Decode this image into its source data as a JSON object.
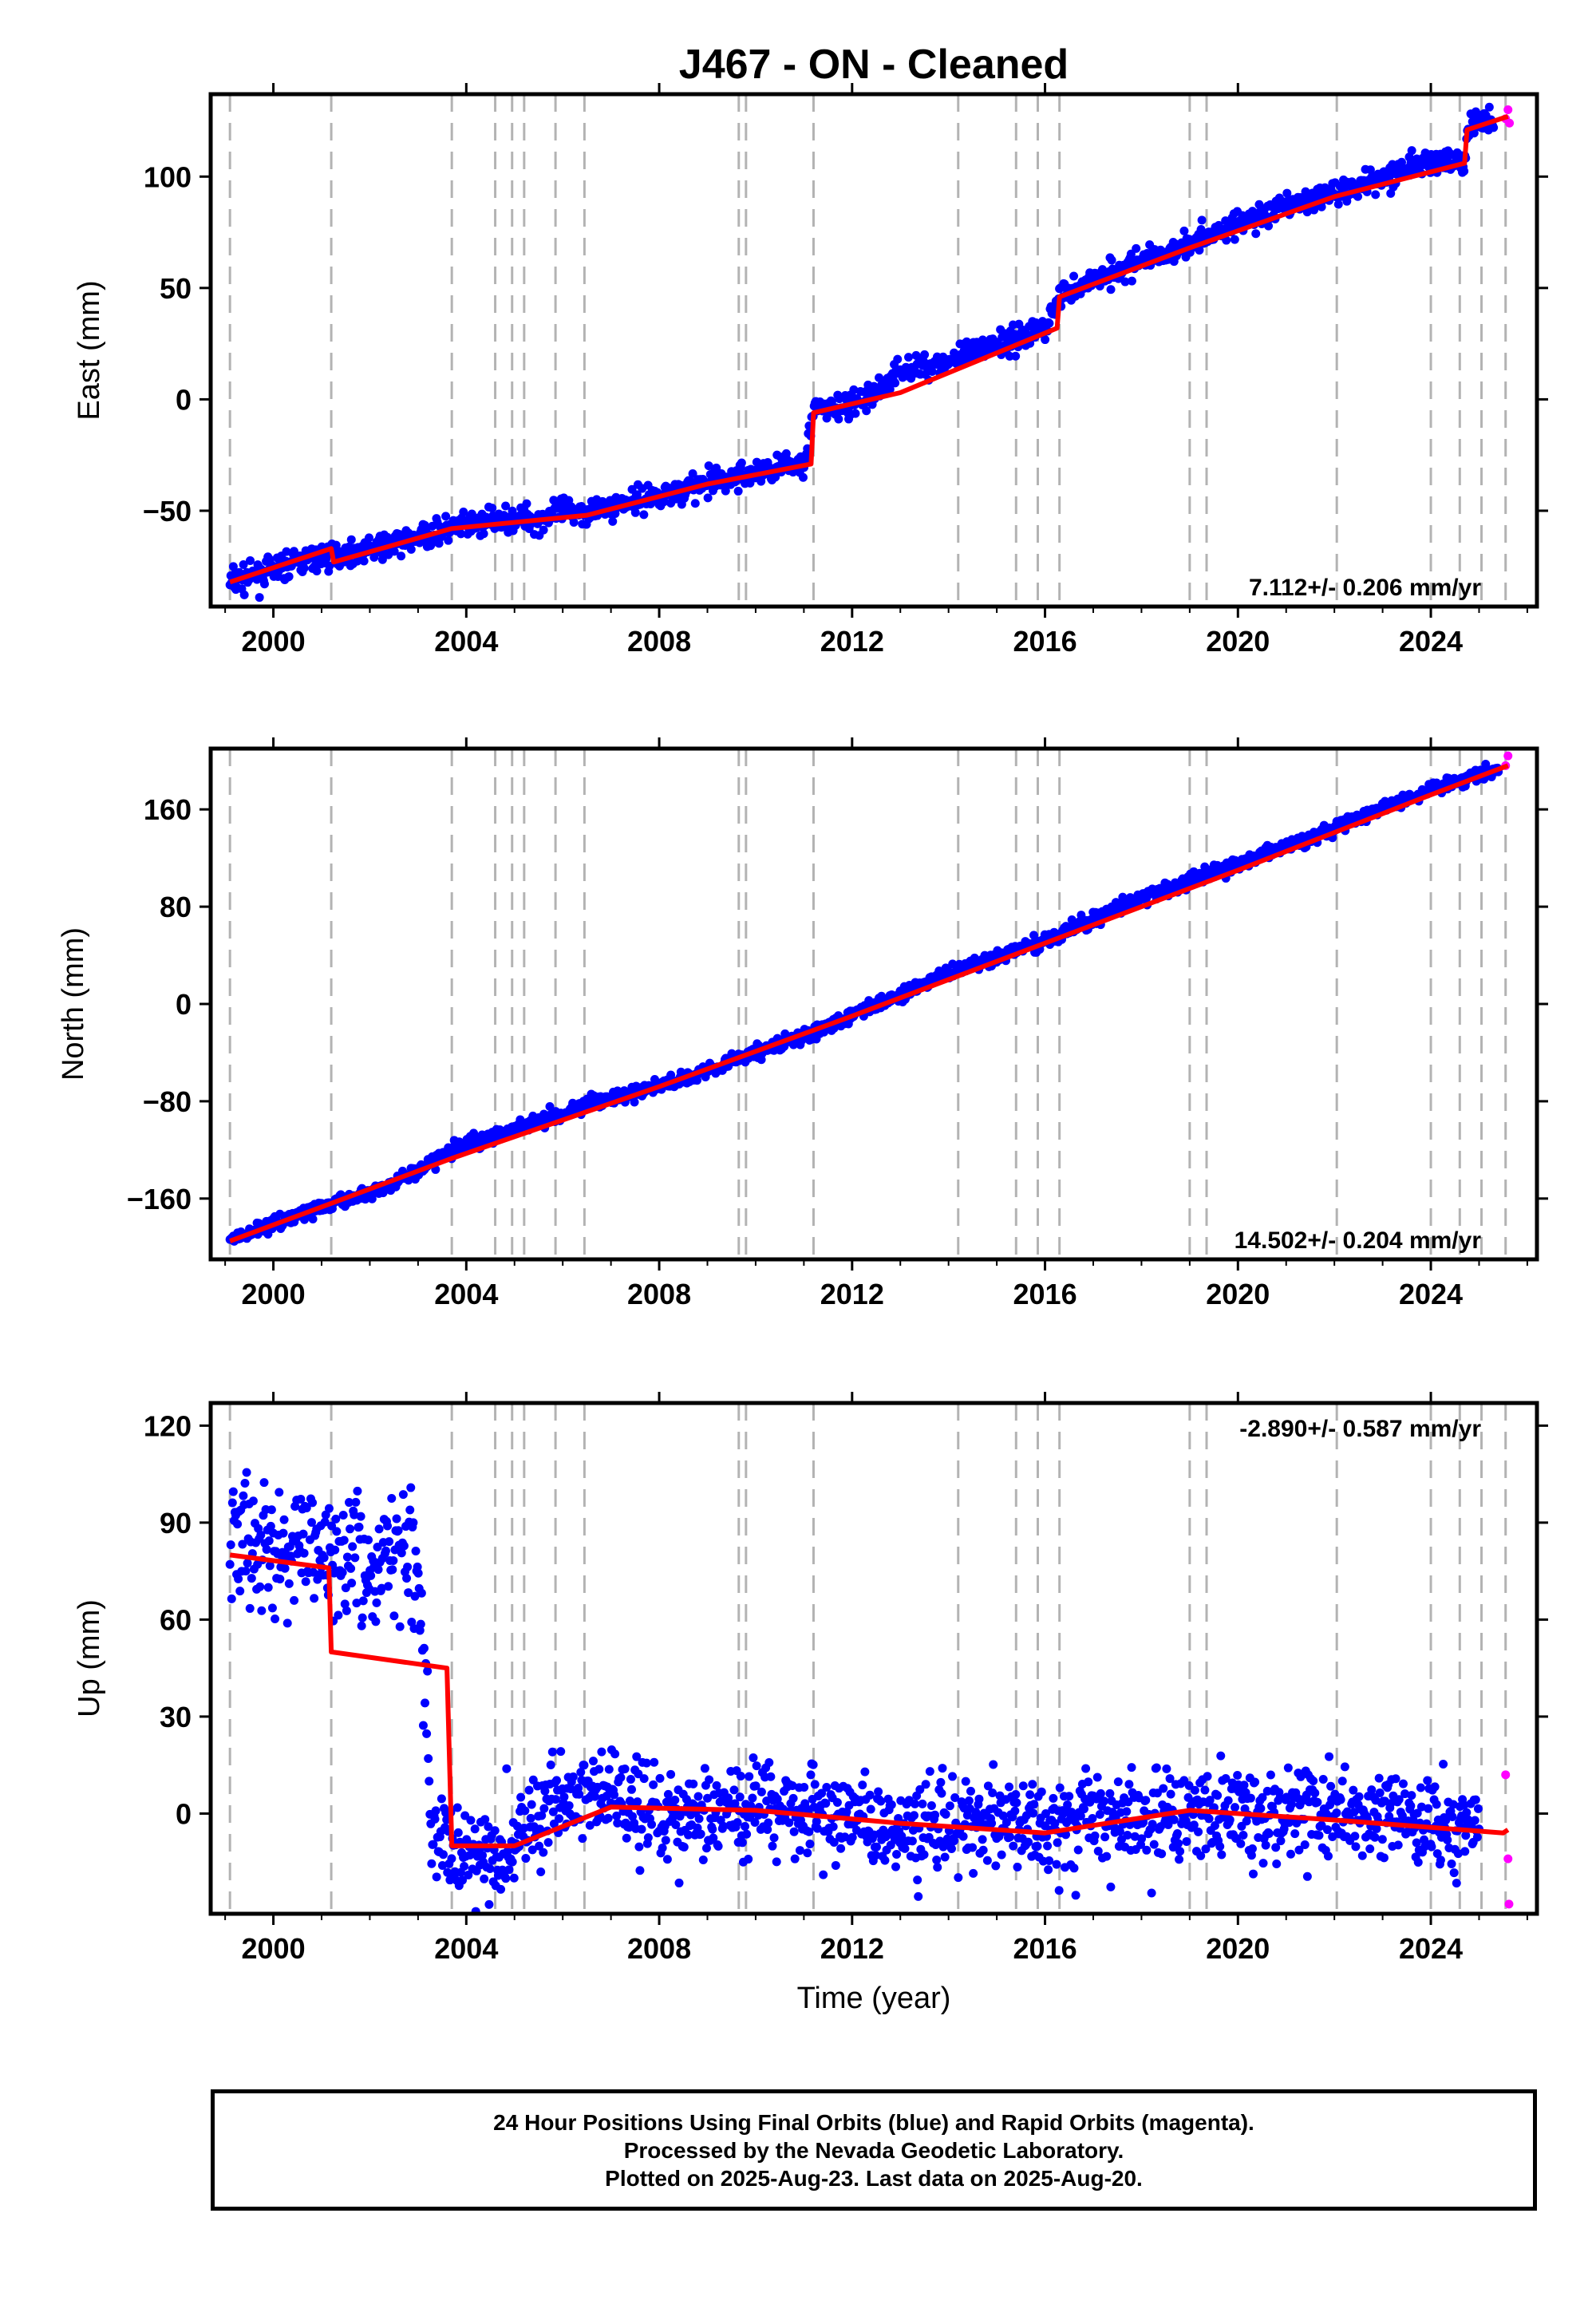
{
  "chart_data": [
    {
      "type": "scatter",
      "title": "J467  - ON - Cleaned",
      "xlabel": "",
      "ylabel": "East (mm)",
      "xlim": [
        1998.7,
        2026.2
      ],
      "ylim": [
        -93,
        137
      ],
      "xticks": [
        2000,
        2004,
        2008,
        2012,
        2016,
        2020,
        2024
      ],
      "xticklabels": [
        "2000",
        "2004",
        "2008",
        "2012",
        "2016",
        "2020",
        "2024"
      ],
      "yticks": [
        -50,
        0,
        50,
        100
      ],
      "yticklabels": [
        "−50",
        "0",
        "50",
        "100"
      ],
      "rate_annotation": "7.112+/- 0.206 mm/yr",
      "rate_position": "bottom-right",
      "series": [
        {
          "name": "Final Orbits",
          "color": "#0000ff",
          "style": "points",
          "x": [
            1999.1,
            1999.5,
            2000.0,
            2000.5,
            2001.2,
            2001.8,
            2002.5,
            2003.0,
            2003.7,
            2004.5,
            2005.0,
            2005.5,
            2006.0,
            2006.5,
            2007.0,
            2008.0,
            2009.0,
            2010.0,
            2011.0,
            2011.2,
            2012.0,
            2012.5,
            2013.0,
            2014.0,
            2015.0,
            2016.0,
            2016.3,
            2017.0,
            2018.0,
            2019.0,
            2020.0,
            2021.0,
            2022.0,
            2023.0,
            2024.0,
            2024.7,
            2024.8,
            2025.3
          ],
          "y": [
            -82,
            -80,
            -77,
            -73,
            -70,
            -68,
            -65,
            -62,
            -58,
            -55,
            -53,
            -54,
            -50,
            -50,
            -48,
            -43,
            -38,
            -33,
            -28,
            -5,
            -3,
            3,
            13,
            17,
            25,
            32,
            46,
            54,
            62,
            70,
            79,
            86,
            93,
            100,
            107,
            106,
            122,
            127
          ]
        },
        {
          "name": "Rapid Orbits",
          "color": "#ff00ff",
          "style": "points",
          "x": [
            2025.55,
            2025.6,
            2025.63
          ],
          "y": [
            126,
            130,
            124
          ]
        },
        {
          "name": "Model",
          "color": "#ff0000",
          "style": "line",
          "x": [
            1999.1,
            2001.2,
            2001.25,
            2003.7,
            2006.5,
            2009.0,
            2011.15,
            2011.2,
            2013.0,
            2016.25,
            2016.3,
            2019.0,
            2022.0,
            2024.7,
            2024.75,
            2025.6
          ],
          "y": [
            -82,
            -67,
            -73,
            -58,
            -52,
            -38,
            -29,
            -6,
            3,
            32,
            46,
            68,
            91,
            106,
            121,
            127
          ]
        }
      ],
      "dashed_lines_x": [
        1999.1,
        2001.2,
        2003.7,
        2004.6,
        2004.95,
        2005.2,
        2005.85,
        2006.45,
        2009.65,
        2009.8,
        2011.2,
        2014.2,
        2015.4,
        2015.85,
        2016.3,
        2019.0,
        2019.35,
        2022.05,
        2024.0,
        2024.6,
        2025.05,
        2025.55
      ],
      "grid": false
    },
    {
      "type": "scatter",
      "title": "",
      "xlabel": "",
      "ylabel": "North (mm)",
      "xlim": [
        1998.7,
        2026.2
      ],
      "ylim": [
        -210,
        210
      ],
      "xticks": [
        2000,
        2004,
        2008,
        2012,
        2016,
        2020,
        2024
      ],
      "xticklabels": [
        "2000",
        "2004",
        "2008",
        "2012",
        "2016",
        "2020",
        "2024"
      ],
      "yticks": [
        -160,
        -80,
        0,
        80,
        160
      ],
      "yticklabels": [
        "−160",
        "−80",
        "0",
        "80",
        "160"
      ],
      "rate_annotation": "14.502+/- 0.204 mm/yr",
      "rate_position": "bottom-right",
      "series": [
        {
          "name": "Final Orbits",
          "color": "#0000ff",
          "style": "points",
          "x": [
            1999.1,
            2000.0,
            2001.2,
            2002.5,
            2003.7,
            2005.0,
            2006.5,
            2008.0,
            2010.0,
            2011.2,
            2012.5,
            2014.0,
            2016.0,
            2018.0,
            2020.0,
            2022.0,
            2024.0,
            2025.4
          ],
          "y": [
            -195,
            -180,
            -165,
            -148,
            -120,
            -102,
            -83,
            -68,
            -40,
            -24,
            0,
            25,
            52,
            87,
            115,
            145,
            177,
            193
          ]
        },
        {
          "name": "Rapid Orbits",
          "color": "#ff00ff",
          "style": "points",
          "x": [
            2025.55,
            2025.6
          ],
          "y": [
            196,
            204
          ]
        },
        {
          "name": "Model",
          "color": "#ff0000",
          "style": "line",
          "x": [
            1999.1,
            2003.7,
            2008.0,
            2012.0,
            2016.0,
            2020.0,
            2024.0,
            2025.6
          ],
          "y": [
            -195,
            -127,
            -68,
            -10,
            50,
            110,
            172,
            196
          ]
        }
      ],
      "dashed_lines_x": [
        1999.1,
        2001.2,
        2003.7,
        2004.6,
        2004.95,
        2005.2,
        2005.85,
        2006.45,
        2009.65,
        2009.8,
        2011.2,
        2014.2,
        2015.4,
        2015.85,
        2016.3,
        2019.0,
        2019.35,
        2022.05,
        2024.0,
        2024.6,
        2025.05,
        2025.55
      ],
      "grid": false
    },
    {
      "type": "scatter",
      "title": "",
      "xlabel": "Time (year)",
      "ylabel": "Up (mm)",
      "xlim": [
        1998.7,
        2026.2
      ],
      "ylim": [
        -31,
        127
      ],
      "xticks": [
        2000,
        2004,
        2008,
        2012,
        2016,
        2020,
        2024
      ],
      "xticklabels": [
        "2000",
        "2004",
        "2008",
        "2012",
        "2016",
        "2020",
        "2024"
      ],
      "yticks": [
        0,
        30,
        60,
        90,
        120
      ],
      "yticklabels": [
        "0",
        "30",
        "60",
        "90",
        "120"
      ],
      "rate_annotation": "-2.890+/- 0.587 mm/yr",
      "rate_position": "top-right",
      "series": [
        {
          "name": "Final Orbits",
          "color": "#0000ff",
          "style": "points",
          "x": [
            1999.1,
            1999.5,
            2000.0,
            2000.5,
            2001.0,
            2001.5,
            2002.0,
            2002.5,
            2003.0,
            2003.3,
            2003.8,
            2004.5,
            2005.0,
            2005.5,
            2006.5,
            2007.5,
            2008.5,
            2010.0,
            2011.0,
            2012.0,
            2013.0,
            2014.0,
            2015.0,
            2016.0,
            2017.0,
            2018.0,
            2019.0,
            2020.0,
            2021.0,
            2022.0,
            2023.0,
            2024.0,
            2025.0
          ],
          "y": [
            80,
            88,
            76,
            85,
            78,
            82,
            75,
            83,
            78,
            -8,
            -10,
            -12,
            -10,
            2,
            6,
            2,
            -1,
            3,
            0,
            -3,
            -4,
            -2,
            -3,
            -5,
            1,
            -1,
            0,
            2,
            0,
            -1,
            -1,
            -2,
            -4
          ]
        },
        {
          "name": "Rapid Orbits",
          "color": "#ff00ff",
          "style": "points",
          "x": [
            2025.55,
            2025.6,
            2025.62
          ],
          "y": [
            12,
            -14,
            -28
          ]
        },
        {
          "name": "Model",
          "color": "#ff0000",
          "style": "line",
          "x": [
            1999.1,
            2001.15,
            2001.2,
            2003.6,
            2003.7,
            2005.0,
            2007.0,
            2010.0,
            2013.0,
            2016.0,
            2019.0,
            2022.0,
            2025.5,
            2025.6
          ],
          "y": [
            80,
            76,
            50,
            45,
            -10,
            -10,
            2,
            1,
            -3,
            -6,
            1,
            -2,
            -6,
            -5
          ]
        }
      ],
      "dashed_lines_x": [
        1999.1,
        2001.2,
        2003.7,
        2004.6,
        2004.95,
        2005.2,
        2005.85,
        2006.45,
        2009.65,
        2009.8,
        2011.2,
        2014.2,
        2015.4,
        2015.85,
        2016.3,
        2019.0,
        2019.35,
        2022.05,
        2024.0,
        2024.6,
        2025.05,
        2025.55
      ],
      "grid": false
    }
  ],
  "footer": {
    "line1": "24 Hour Positions Using Final Orbits (blue) and Rapid Orbits (magenta).",
    "line2": "Processed by the Nevada Geodetic Laboratory.",
    "line3": "Plotted on 2025-Aug-23. Last data on 2025-Aug-20."
  }
}
